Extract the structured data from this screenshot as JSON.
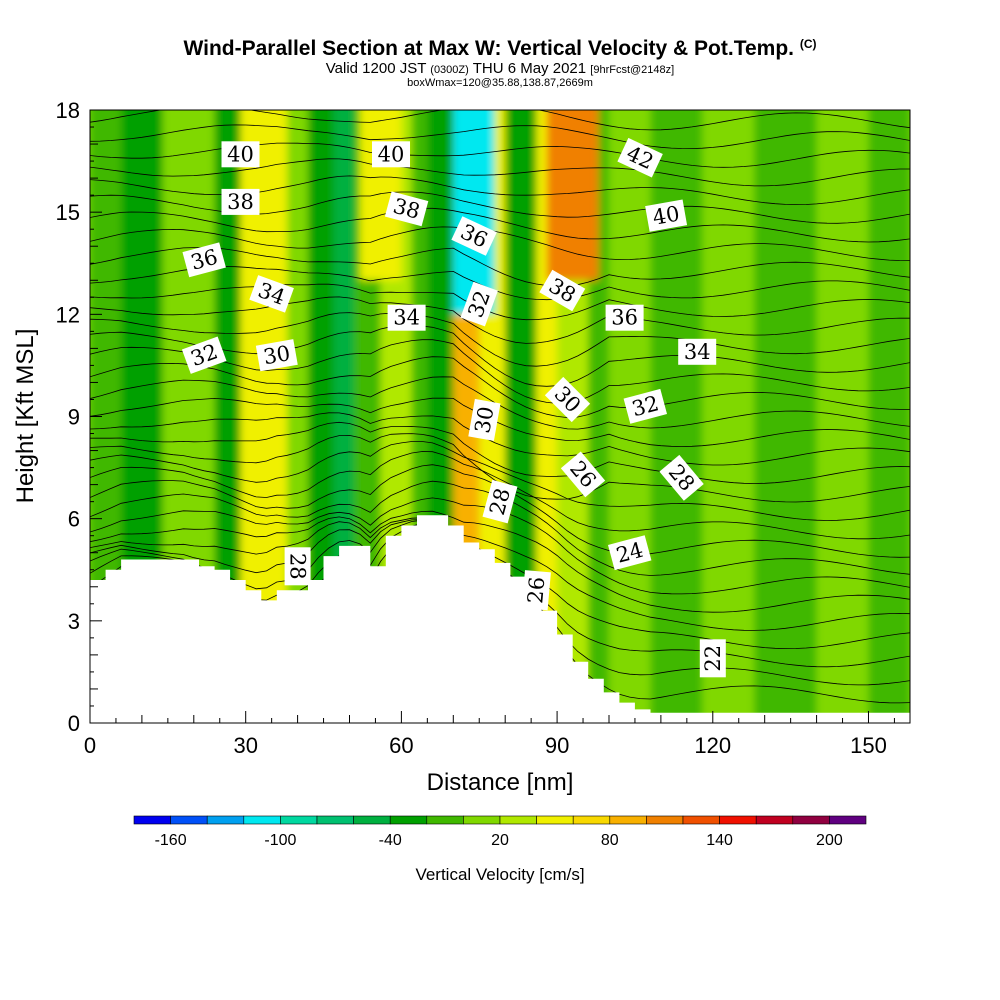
{
  "title": {
    "main": "Wind-Parallel Section at Max W: Vertical Velocity & Pot.Temp.",
    "copyright": "(C)",
    "valid_prefix": "Valid 1200 JST",
    "valid_utc": "(0300Z)",
    "valid_date": "THU 6 May 2021",
    "forecast": "[9hrFcst@2148z]",
    "box": "boxWmax=120@35.88,138.87,2669m"
  },
  "chart_data": {
    "type": "heatmap",
    "xlabel": "Distance [nm]",
    "ylabel": "Height [Kft MSL]",
    "xlim": [
      0,
      158
    ],
    "ylim": [
      0,
      18
    ],
    "x_ticks": [
      "0",
      "30",
      "60",
      "90",
      "120",
      "150"
    ],
    "x_tick_values": [
      0,
      30,
      60,
      90,
      120,
      150
    ],
    "y_ticks": [
      "0",
      "3",
      "6",
      "9",
      "12",
      "15",
      "18"
    ],
    "y_tick_values": [
      0,
      3,
      6,
      9,
      12,
      15,
      18
    ],
    "grid": false,
    "terrain_profile": {
      "x": [
        0,
        3,
        6,
        9,
        12,
        15,
        18,
        21,
        24,
        27,
        30,
        33,
        36,
        39,
        42,
        45,
        48,
        51,
        54,
        57,
        60,
        63,
        66,
        69,
        72,
        75,
        78,
        81,
        84,
        87,
        90,
        93,
        96,
        99,
        102,
        105,
        108,
        120,
        140,
        158
      ],
      "height": [
        4.2,
        4.5,
        4.8,
        4.8,
        4.8,
        4.8,
        4.8,
        4.6,
        4.5,
        4.2,
        3.9,
        3.6,
        3.9,
        3.9,
        4.2,
        4.9,
        5.2,
        5.2,
        4.6,
        5.5,
        5.8,
        6.1,
        6.1,
        5.8,
        5.3,
        5.1,
        4.7,
        4.3,
        3.8,
        3.3,
        2.6,
        1.8,
        1.3,
        0.9,
        0.6,
        0.4,
        0.3,
        0.3,
        0.3,
        0.3
      ]
    },
    "vertical_velocity_legend": {
      "label": "Vertical Velocity [cm/s]",
      "tick_labels": [
        "-160",
        "-100",
        "-40",
        "20",
        "80",
        "140",
        "200"
      ],
      "tick_values": [
        -160,
        -100,
        -40,
        20,
        80,
        140,
        200
      ],
      "levels": [
        -180,
        -160,
        -140,
        -120,
        -100,
        -80,
        -60,
        -40,
        -20,
        0,
        20,
        40,
        60,
        80,
        100,
        120,
        140,
        160,
        180,
        200,
        220
      ],
      "colors": [
        "#0000f0",
        "#0050f8",
        "#00a0f0",
        "#00e8f0",
        "#00d8a0",
        "#00c070",
        "#00b040",
        "#00a000",
        "#40b800",
        "#80d800",
        "#b0e800",
        "#f0f000",
        "#f8d800",
        "#f8b000",
        "#f08000",
        "#f05000",
        "#f01000",
        "#c00020",
        "#900040",
        "#600080"
      ]
    },
    "vertical_velocity_bands": [
      {
        "x": [
          0,
          6
        ],
        "value": -10
      },
      {
        "x": [
          6,
          14
        ],
        "value": -30
      },
      {
        "x": [
          14,
          18
        ],
        "value": 5
      },
      {
        "x": [
          18,
          24
        ],
        "value": 15
      },
      {
        "x": [
          24,
          29
        ],
        "value": -25
      },
      {
        "x": [
          29,
          38
        ],
        "value": 55
      },
      {
        "x": [
          38,
          42
        ],
        "value": 10
      },
      {
        "x": [
          42,
          47
        ],
        "value": -40
      },
      {
        "x": [
          47,
          51
        ],
        "value": -55
      },
      {
        "x": [
          51,
          56
        ],
        "value": -10
      },
      {
        "x": [
          56,
          62
        ],
        "value": 35
      },
      {
        "x": [
          62,
          65
        ],
        "value": -20
      },
      {
        "x": [
          65,
          70
        ],
        "value": -35
      },
      {
        "x": [
          70,
          75
        ],
        "value": 95
      },
      {
        "x": [
          75,
          80
        ],
        "value": 40
      },
      {
        "x": [
          80,
          86
        ],
        "value": -30
      },
      {
        "x": [
          86,
          90
        ],
        "value": 55
      },
      {
        "x": [
          90,
          96
        ],
        "value": 20
      },
      {
        "x": [
          96,
          100
        ],
        "value": -5
      },
      {
        "x": [
          100,
          108
        ],
        "value": 15
      },
      {
        "x": [
          108,
          118
        ],
        "value": -5
      },
      {
        "x": [
          118,
          128
        ],
        "value": 10
      },
      {
        "x": [
          128,
          140
        ],
        "value": -5
      },
      {
        "x": [
          140,
          150
        ],
        "value": 10
      },
      {
        "x": [
          150,
          158
        ],
        "value": -5
      }
    ],
    "upper_jets": [
      {
        "x": [
          70,
          78
        ],
        "y": [
          12,
          18
        ],
        "value": -110
      },
      {
        "x": [
          88,
          98
        ],
        "y": [
          13,
          18
        ],
        "value": 100
      },
      {
        "x": [
          52,
          60
        ],
        "y": [
          13,
          18
        ],
        "value": 40
      }
    ],
    "potential_temperature_labels": [
      {
        "text": "40",
        "x": 29,
        "y": 16.7,
        "angle": 0
      },
      {
        "text": "40",
        "x": 58,
        "y": 16.7,
        "angle": 0
      },
      {
        "text": "42",
        "x": 106,
        "y": 16.6,
        "angle": 25
      },
      {
        "text": "38",
        "x": 29,
        "y": 15.3,
        "angle": 0
      },
      {
        "text": "38",
        "x": 61,
        "y": 15.1,
        "angle": 15
      },
      {
        "text": "40",
        "x": 111,
        "y": 14.9,
        "angle": -10
      },
      {
        "text": "36",
        "x": 22,
        "y": 13.6,
        "angle": -15
      },
      {
        "text": "36",
        "x": 74,
        "y": 14.3,
        "angle": 25
      },
      {
        "text": "34",
        "x": 35,
        "y": 12.6,
        "angle": 20
      },
      {
        "text": "32",
        "x": 75,
        "y": 12.3,
        "angle": -70
      },
      {
        "text": "38",
        "x": 91,
        "y": 12.7,
        "angle": 30
      },
      {
        "text": "34",
        "x": 61,
        "y": 11.9,
        "angle": 0
      },
      {
        "text": "36",
        "x": 103,
        "y": 11.9,
        "angle": 0
      },
      {
        "text": "32",
        "x": 22,
        "y": 10.8,
        "angle": -20
      },
      {
        "text": "30",
        "x": 36,
        "y": 10.8,
        "angle": -10
      },
      {
        "text": "34",
        "x": 117,
        "y": 10.9,
        "angle": 0
      },
      {
        "text": "30",
        "x": 92,
        "y": 9.5,
        "angle": 45
      },
      {
        "text": "32",
        "x": 107,
        "y": 9.3,
        "angle": -15
      },
      {
        "text": "30",
        "x": 76,
        "y": 8.9,
        "angle": -80
      },
      {
        "text": "26",
        "x": 95,
        "y": 7.3,
        "angle": 50
      },
      {
        "text": "28",
        "x": 114,
        "y": 7.2,
        "angle": 50
      },
      {
        "text": "28",
        "x": 79,
        "y": 6.5,
        "angle": -75
      },
      {
        "text": "24",
        "x": 104,
        "y": 5.0,
        "angle": -15
      },
      {
        "text": "28",
        "x": 40,
        "y": 4.6,
        "angle": 90
      },
      {
        "text": "26",
        "x": 86,
        "y": 3.9,
        "angle": -85
      },
      {
        "text": "22",
        "x": 120,
        "y": 1.9,
        "angle": -90
      }
    ]
  }
}
